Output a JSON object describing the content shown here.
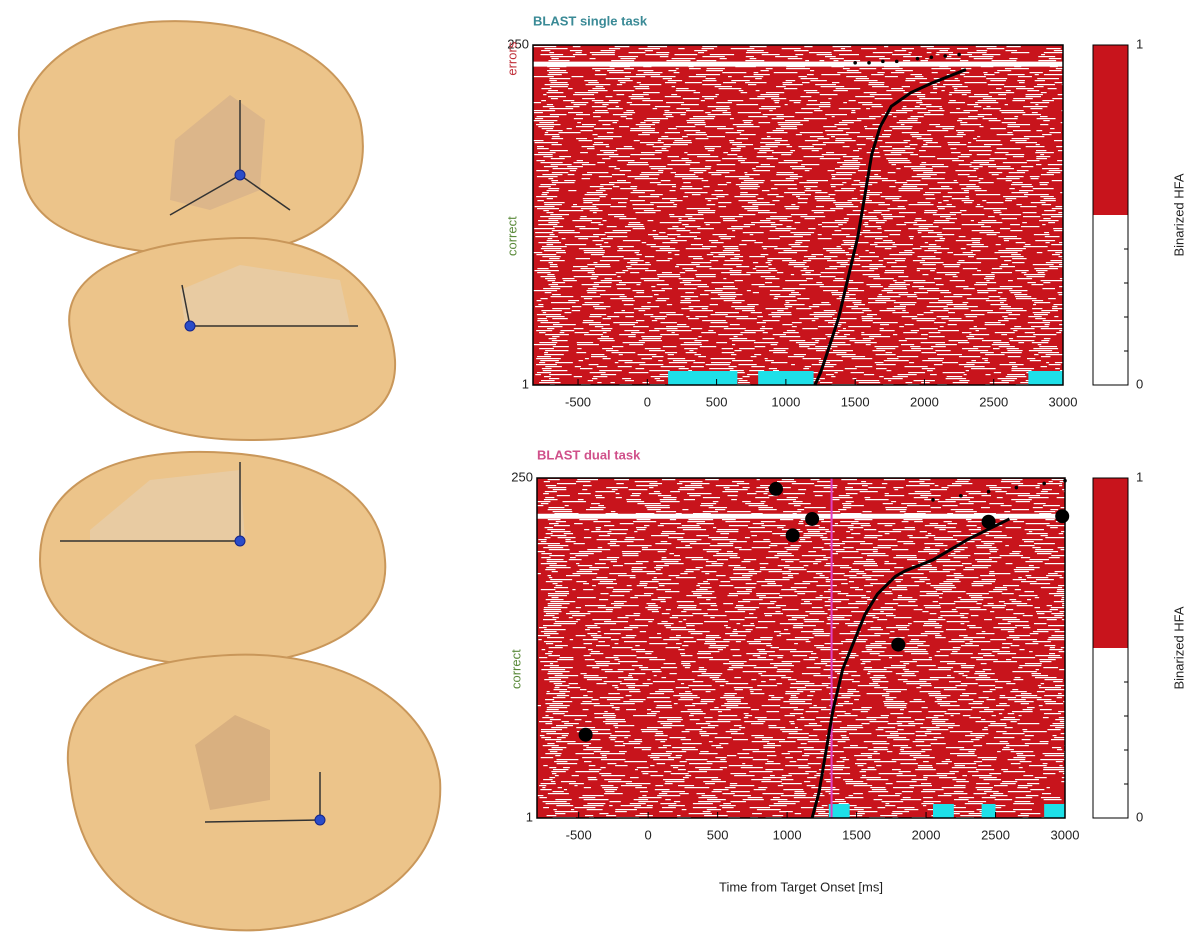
{
  "chart_data": [
    {
      "type": "raster",
      "title": "BLAST single task",
      "title_color": "#3a8a96",
      "xlim": [
        -825,
        3000
      ],
      "xticks": [
        -500,
        0,
        500,
        1000,
        1500,
        2000,
        2500,
        3000
      ],
      "ylim": [
        1,
        250
      ],
      "yticks": [
        1,
        250
      ],
      "group_labels": [
        {
          "text": "errors",
          "color": "#c0303a",
          "y": 240
        },
        {
          "text": "correct",
          "color": "#5a8a3a",
          "y": 110
        }
      ],
      "separator": 236,
      "color": "#c8141c",
      "rt": {
        "x": [
          1210,
          1250,
          1300,
          1380,
          1450,
          1520,
          1570,
          1620,
          1680,
          1760,
          1900,
          2050,
          2200,
          2300
        ],
        "y": [
          1,
          10,
          25,
          50,
          80,
          110,
          140,
          170,
          190,
          205,
          215,
          222,
          228,
          232
        ]
      },
      "error_rt": {
        "x": [
          1500,
          1600,
          1700,
          1800,
          1950,
          2050,
          2150,
          2250
        ],
        "y": [
          237,
          237,
          238,
          238,
          240,
          241,
          242,
          243
        ]
      },
      "segments": {
        "color": "#1ee0e8",
        "ranges": [
          [
            150,
            650
          ],
          [
            800,
            1200
          ],
          [
            2750,
            3000
          ]
        ]
      },
      "colorbar": {
        "label": "Binarized HFA",
        "clim": [
          0,
          1
        ],
        "ticks": [
          0,
          1
        ]
      }
    },
    {
      "type": "raster",
      "title": "BLAST dual task",
      "title_color": "#d0508a",
      "xlim": [
        -800,
        3000
      ],
      "xticks": [
        -500,
        0,
        500,
        1000,
        1500,
        2000,
        2500,
        3000
      ],
      "ylim": [
        1,
        250
      ],
      "yticks": [
        1,
        250
      ],
      "xlabel": "Time from Target Onset [ms]",
      "group_labels": [
        {
          "text": "correct",
          "color": "#5a8a3a",
          "y": 110
        }
      ],
      "separator": 222,
      "color": "#c8141c",
      "vline": {
        "x": 1320,
        "color": "#e040c0"
      },
      "rt": {
        "x": [
          1180,
          1230,
          1280,
          1330,
          1400,
          1480,
          1560,
          1650,
          1780,
          1850,
          2050,
          2300,
          2600
        ],
        "y": [
          1,
          20,
          50,
          80,
          110,
          130,
          150,
          165,
          178,
          182,
          190,
          205,
          220
        ]
      },
      "error_rt": {
        "x": [
          2050,
          2250,
          2450,
          2650,
          2850,
          3000
        ],
        "y": [
          234,
          237,
          240,
          243,
          246,
          248
        ]
      },
      "markers": {
        "x": [
          -450,
          920,
          1180,
          1040,
          1800,
          2450,
          2980
        ],
        "y": [
          62,
          242,
          220,
          208,
          128,
          218,
          222
        ]
      },
      "segments": {
        "color": "#1ee0e8",
        "ranges": [
          [
            1300,
            1450
          ],
          [
            2050,
            2200
          ],
          [
            2400,
            2500
          ],
          [
            2850,
            3000
          ]
        ]
      },
      "colorbar": {
        "label": "Binarized HFA",
        "clim": [
          0,
          1
        ],
        "ticks": [
          0,
          1
        ]
      }
    }
  ]
}
